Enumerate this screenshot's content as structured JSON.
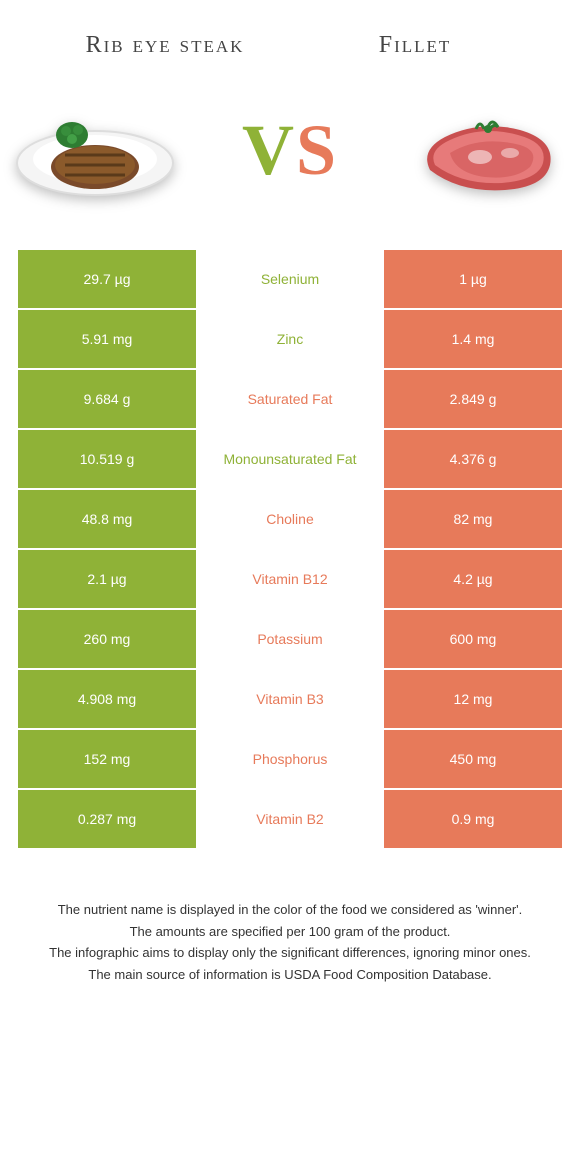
{
  "colors": {
    "green": "#8fb237",
    "salmon": "#e77a5a",
    "text": "#333333",
    "bg": "#ffffff"
  },
  "header": {
    "left_title": "Rib eye steak",
    "right_title": "Fillet"
  },
  "vs": {
    "v": "V",
    "s": "S"
  },
  "rows": [
    {
      "nutrient": "Selenium",
      "left": "29.7 µg",
      "right": "1 µg",
      "winner": "left"
    },
    {
      "nutrient": "Zinc",
      "left": "5.91 mg",
      "right": "1.4 mg",
      "winner": "left"
    },
    {
      "nutrient": "Saturated Fat",
      "left": "9.684 g",
      "right": "2.849 g",
      "winner": "right"
    },
    {
      "nutrient": "Monounsaturated Fat",
      "left": "10.519 g",
      "right": "4.376 g",
      "winner": "left"
    },
    {
      "nutrient": "Choline",
      "left": "48.8 mg",
      "right": "82 mg",
      "winner": "right"
    },
    {
      "nutrient": "Vitamin B12",
      "left": "2.1 µg",
      "right": "4.2 µg",
      "winner": "right"
    },
    {
      "nutrient": "Potassium",
      "left": "260 mg",
      "right": "600 mg",
      "winner": "right"
    },
    {
      "nutrient": "Vitamin B3",
      "left": "4.908 mg",
      "right": "12 mg",
      "winner": "right"
    },
    {
      "nutrient": "Phosphorus",
      "left": "152 mg",
      "right": "450 mg",
      "winner": "right"
    },
    {
      "nutrient": "Vitamin B2",
      "left": "0.287 mg",
      "right": "0.9 mg",
      "winner": "right"
    }
  ],
  "footer": {
    "line1": "The nutrient name is displayed in the color of the food we considered as 'winner'.",
    "line2": "The amounts are specified per 100 gram of the product.",
    "line3": "The infographic aims to display only the significant differences, ignoring minor ones.",
    "line4": "The main source of information is USDA Food Composition Database."
  }
}
